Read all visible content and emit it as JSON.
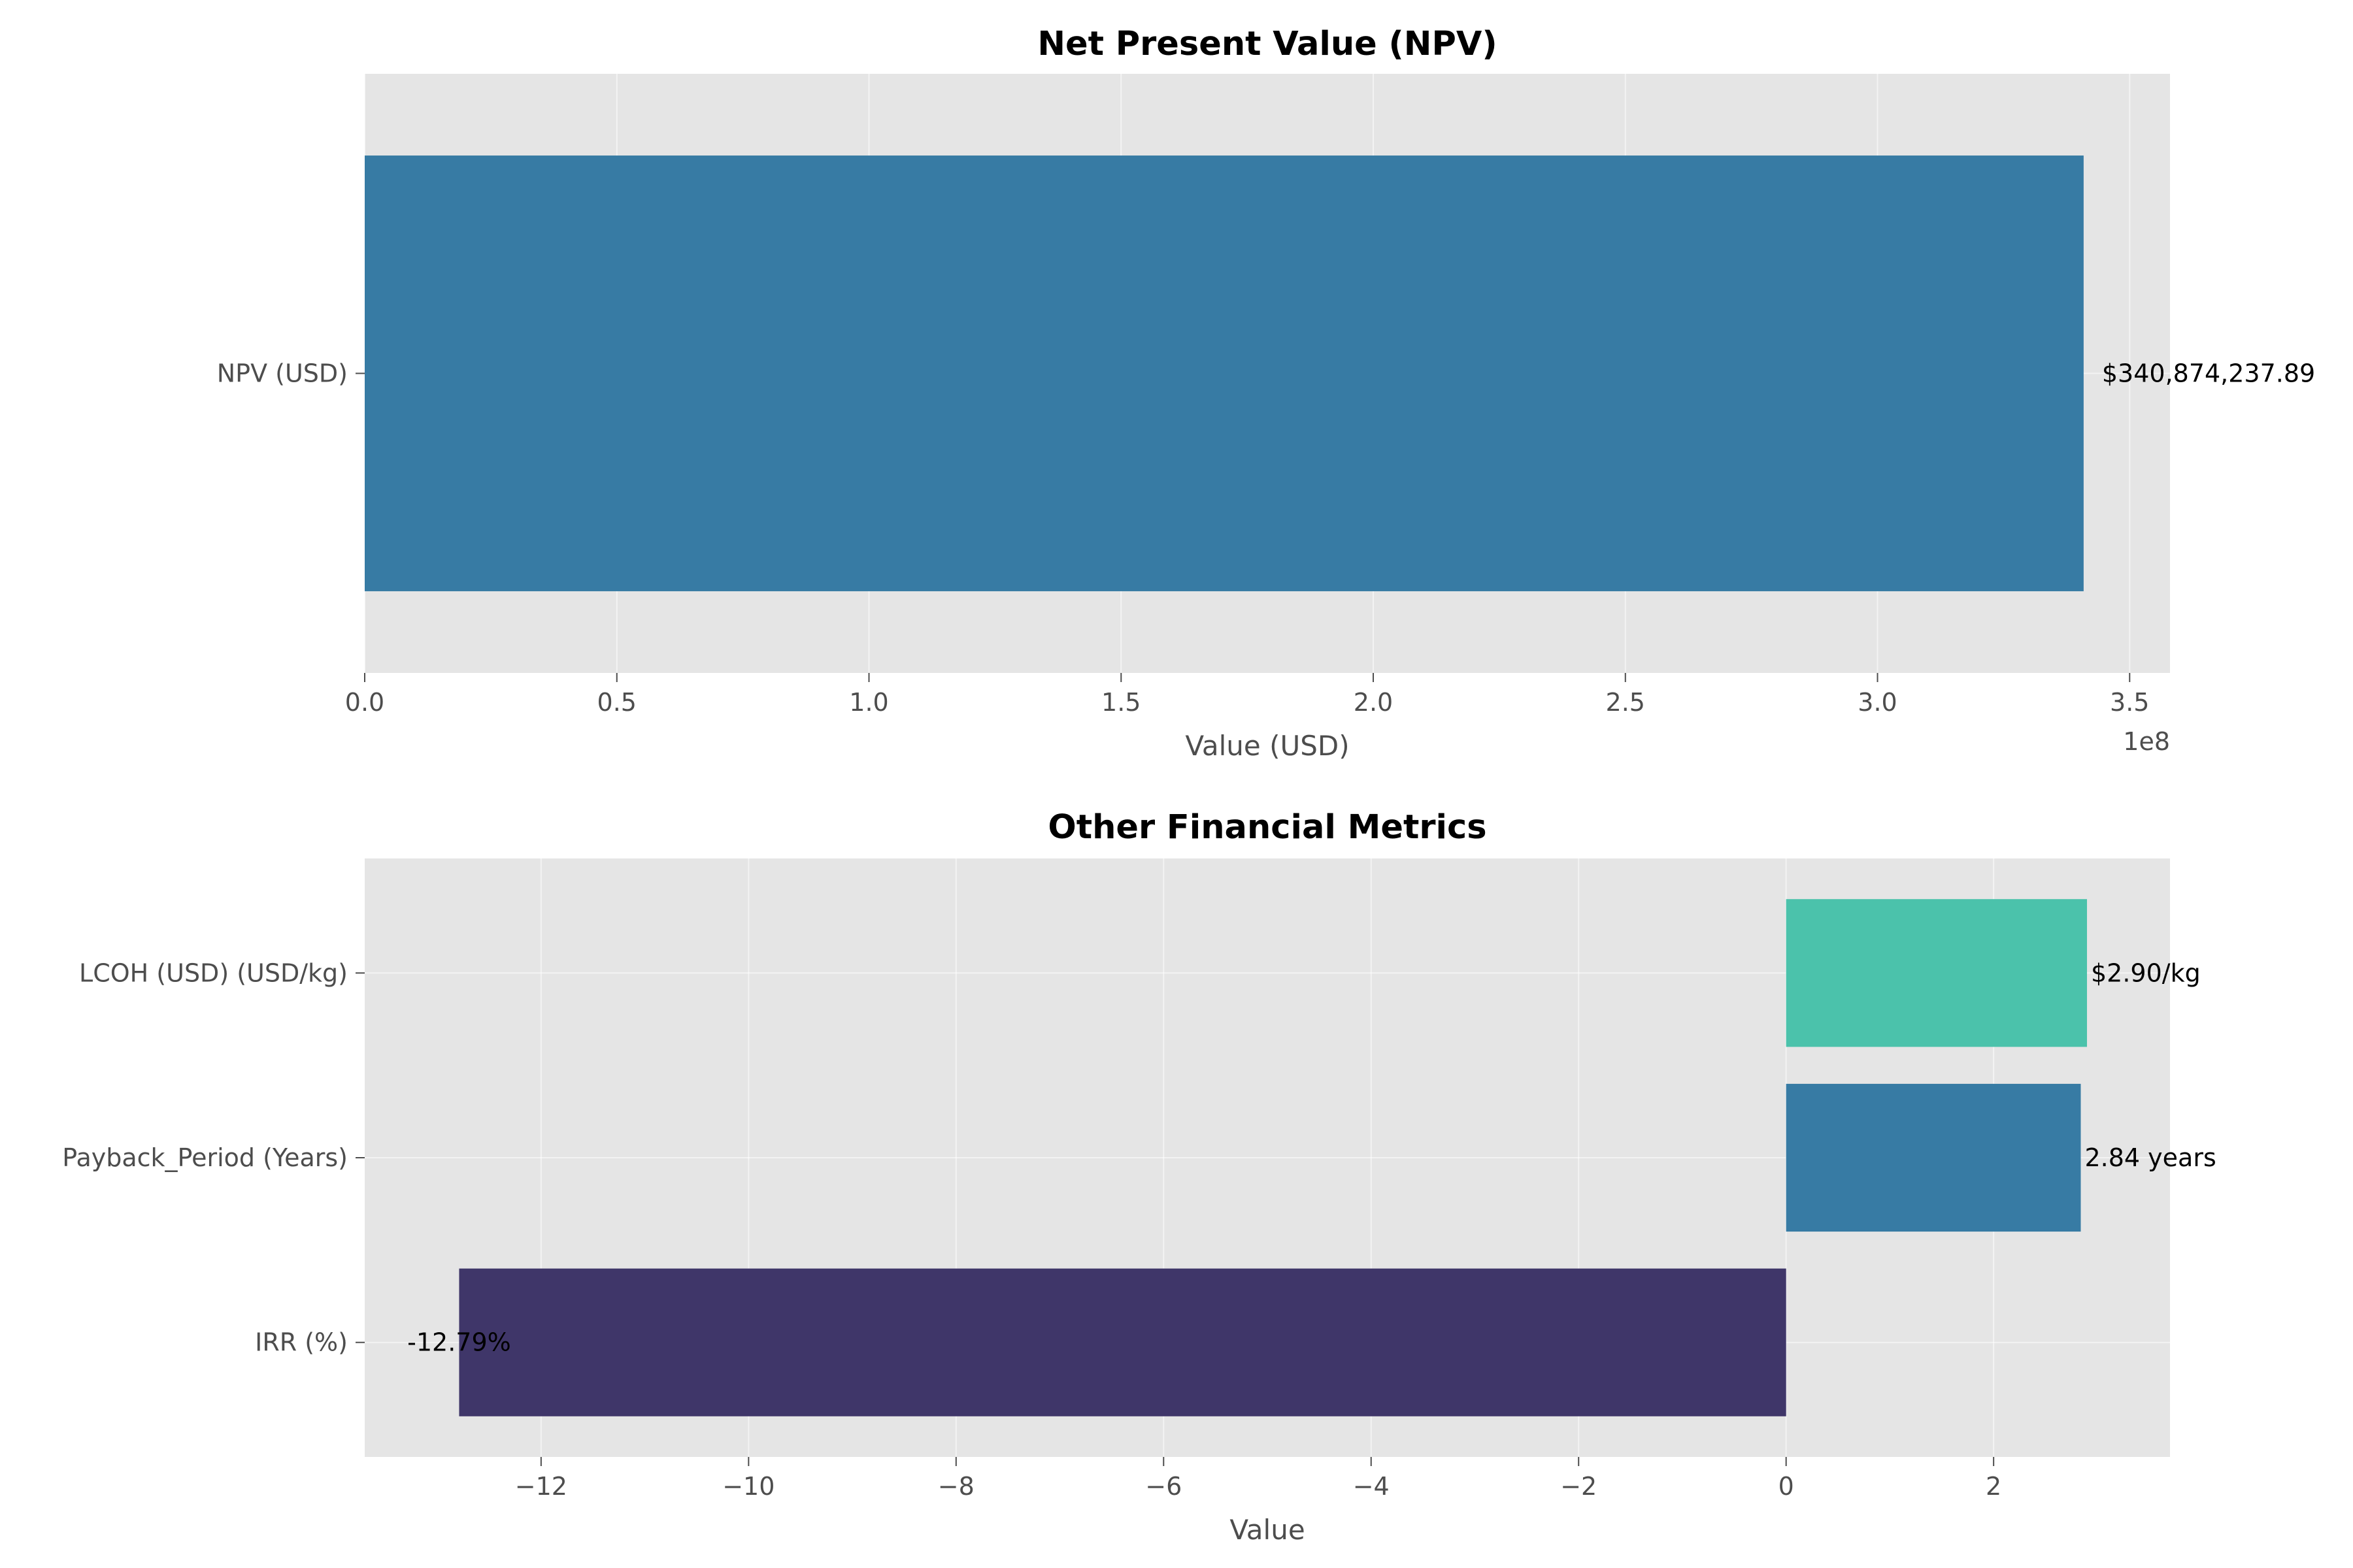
{
  "chart_data": [
    {
      "type": "bar",
      "orientation": "horizontal",
      "title": "Net Present Value (NPV)",
      "xlabel": "Value (USD)",
      "ylabel": "",
      "x_offset_label": "1e8",
      "xlim": [
        0,
        3.58
      ],
      "x_unit_multiplier": 100000000,
      "x_ticks": [
        0.0,
        0.5,
        1.0,
        1.5,
        2.0,
        2.5,
        3.0,
        3.5
      ],
      "x_tick_labels": [
        "0.0",
        "0.5",
        "1.0",
        "1.5",
        "2.0",
        "2.5",
        "3.0",
        "3.5"
      ],
      "categories": [
        "NPV (USD)"
      ],
      "values": [
        340874237.89
      ],
      "data_labels": [
        "$340,874,237.89"
      ],
      "colors": [
        "#377ba4"
      ],
      "grid": true,
      "background": "#e5e5e5"
    },
    {
      "type": "bar",
      "orientation": "horizontal",
      "title": "Other Financial Metrics",
      "xlabel": "Value",
      "ylabel": "",
      "xlim": [
        -13.7,
        3.7
      ],
      "x_ticks": [
        -12,
        -10,
        -8,
        -6,
        -4,
        -2,
        0,
        2
      ],
      "x_tick_labels": [
        "−12",
        "−10",
        "−8",
        "−6",
        "−4",
        "−2",
        "0",
        "2"
      ],
      "categories": [
        "IRR (%)",
        "Payback_Period (Years)",
        "LCOH (USD) (USD/kg)"
      ],
      "values": [
        -12.79,
        2.84,
        2.9
      ],
      "data_labels": [
        "-12.79%",
        "2.84 years",
        "$2.90/kg"
      ],
      "colors": [
        "#3f3669",
        "#377ba4",
        "#4bc2ab"
      ],
      "grid": true,
      "background": "#e5e5e5"
    }
  ]
}
